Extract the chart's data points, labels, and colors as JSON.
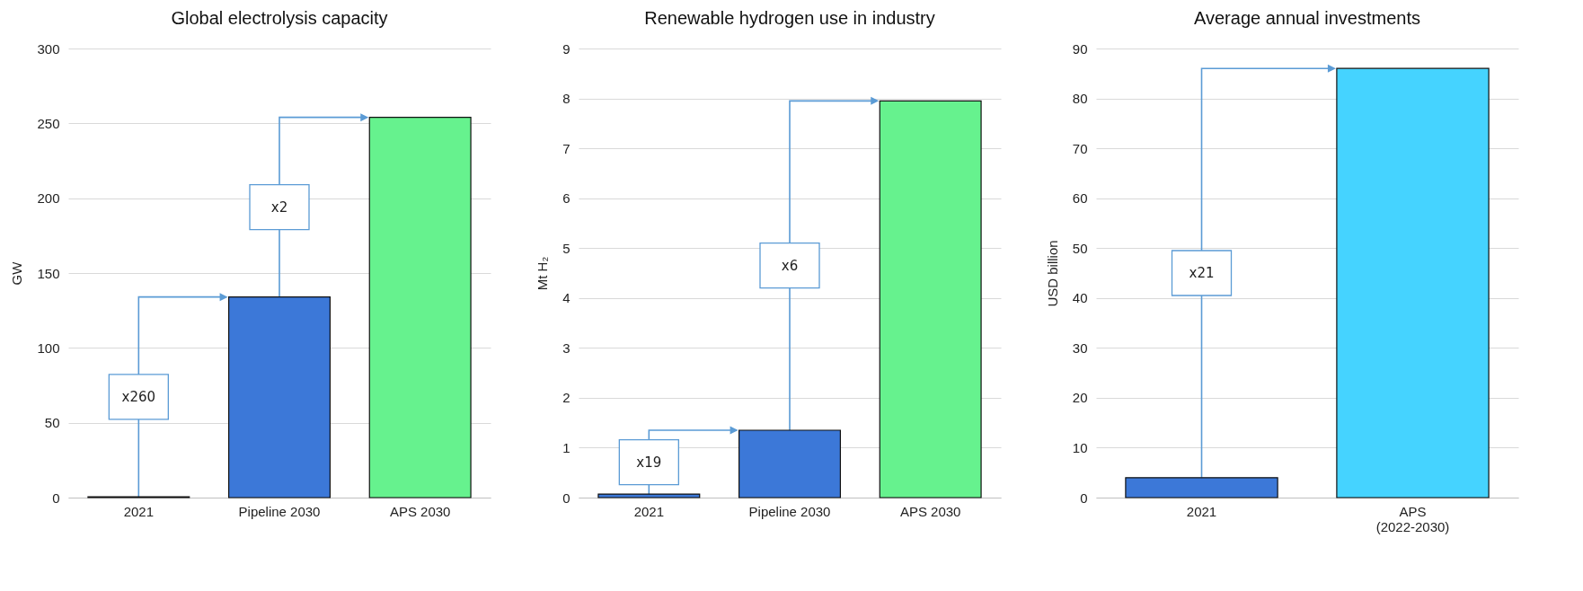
{
  "chart_data": [
    {
      "type": "bar",
      "title": "Global electrolysis capacity",
      "ylabel": "GW",
      "categories": [
        "2021",
        "Pipeline 2030",
        "APS 2030"
      ],
      "values": [
        0.5,
        134,
        254
      ],
      "colors": [
        "#3c78d8",
        "#3c78d8",
        "#66f28e"
      ],
      "ylim": [
        0,
        300
      ],
      "yticks": [
        0,
        50,
        100,
        150,
        200,
        250,
        300
      ],
      "grid": "y",
      "annotations": [
        "x260",
        "x2"
      ]
    },
    {
      "type": "bar",
      "title": "Renewable hydrogen use in industry",
      "ylabel": "Mt H₂",
      "categories": [
        "2021",
        "Pipeline 2030",
        "APS 2030"
      ],
      "values": [
        0.07,
        1.35,
        7.95
      ],
      "colors": [
        "#3c78d8",
        "#3c78d8",
        "#66f28e"
      ],
      "ylim": [
        0,
        9
      ],
      "yticks": [
        0,
        1,
        2,
        3,
        4,
        5,
        6,
        7,
        8,
        9
      ],
      "grid": "y",
      "annotations": [
        "x19",
        "x6"
      ]
    },
    {
      "type": "bar",
      "title": "Average annual investments",
      "ylabel": "USD billion",
      "categories": [
        "2021",
        "APS (2022-2030)"
      ],
      "values": [
        4,
        86
      ],
      "colors": [
        "#3c78d8",
        "#45d3ff"
      ],
      "ylim": [
        0,
        90
      ],
      "yticks": [
        0,
        10,
        20,
        30,
        40,
        50,
        60,
        70,
        80,
        90
      ],
      "grid": "y",
      "annotations": [
        "x21"
      ]
    }
  ]
}
